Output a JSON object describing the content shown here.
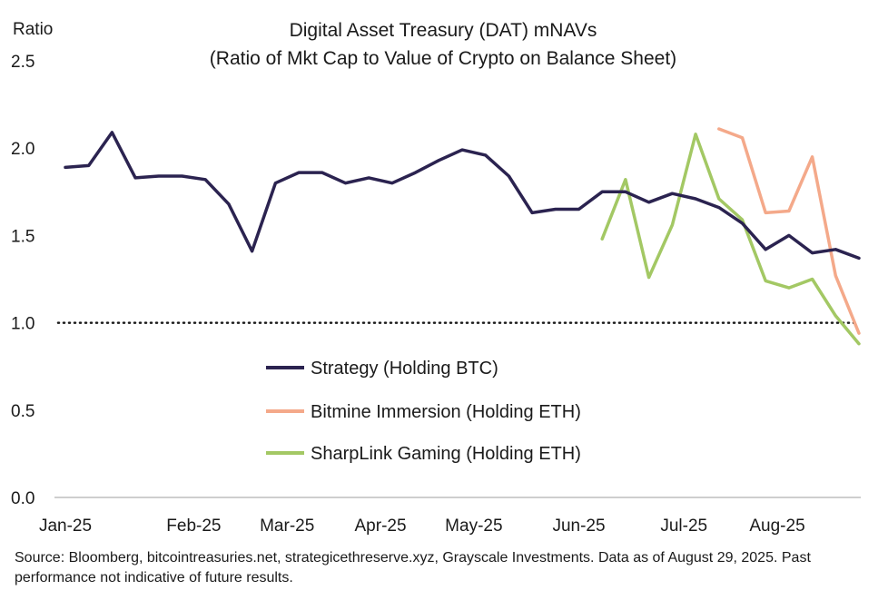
{
  "chart_data": {
    "type": "line",
    "title": "Digital Asset Treasury (DAT) mNAVs",
    "subtitle": "(Ratio of Mkt Cap to Value of Crypto on Balance Sheet)",
    "ylabel": "Ratio",
    "ylim": [
      0,
      2.5
    ],
    "yticks": [
      "0.0",
      "0.5",
      "1.0",
      "1.5",
      "2.0",
      "2.5"
    ],
    "xlim": [
      0,
      34
    ],
    "xticks": [
      {
        "label": "Jan-25",
        "x": 0
      },
      {
        "label": "Feb-25",
        "x": 5.5
      },
      {
        "label": "Mar-25",
        "x": 9.5
      },
      {
        "label": "Apr-25",
        "x": 13.5
      },
      {
        "label": "May-25",
        "x": 17.5
      },
      {
        "label": "Jun-25",
        "x": 22
      },
      {
        "label": "Jul-25",
        "x": 26.5
      },
      {
        "label": "Aug-25",
        "x": 30.5
      }
    ],
    "reference_line": {
      "y": 1.0,
      "style": "dotted"
    },
    "grid": false,
    "legend_position": "center-left",
    "series": [
      {
        "name": "Strategy (Holding BTC)",
        "color": "#2b2350",
        "points": [
          [
            0,
            1.89
          ],
          [
            1,
            1.9
          ],
          [
            2,
            2.09
          ],
          [
            3,
            1.83
          ],
          [
            4,
            1.84
          ],
          [
            5,
            1.84
          ],
          [
            6,
            1.82
          ],
          [
            7,
            1.68
          ],
          [
            8,
            1.41
          ],
          [
            9,
            1.8
          ],
          [
            10,
            1.86
          ],
          [
            11,
            1.86
          ],
          [
            12,
            1.8
          ],
          [
            13,
            1.83
          ],
          [
            14,
            1.8
          ],
          [
            15,
            1.86
          ],
          [
            16,
            1.93
          ],
          [
            17,
            1.99
          ],
          [
            18,
            1.96
          ],
          [
            19,
            1.84
          ],
          [
            20,
            1.63
          ],
          [
            21,
            1.65
          ],
          [
            22,
            1.65
          ],
          [
            23,
            1.75
          ],
          [
            24,
            1.75
          ],
          [
            25,
            1.69
          ],
          [
            26,
            1.74
          ],
          [
            27,
            1.71
          ],
          [
            28,
            1.66
          ],
          [
            29,
            1.57
          ],
          [
            30,
            1.42
          ],
          [
            31,
            1.5
          ],
          [
            32,
            1.4
          ],
          [
            33,
            1.42
          ],
          [
            34,
            1.37
          ]
        ]
      },
      {
        "name": "Bitmine Immersion (Holding ETH)",
        "color": "#f4a98a",
        "points": [
          [
            28,
            2.11
          ],
          [
            29,
            2.06
          ],
          [
            30,
            1.63
          ],
          [
            31,
            1.64
          ],
          [
            32,
            1.95
          ],
          [
            33,
            1.27
          ],
          [
            34,
            0.94
          ]
        ]
      },
      {
        "name": "SharpLink Gaming (Holding ETH)",
        "color": "#a3c864",
        "points": [
          [
            23,
            1.48
          ],
          [
            24,
            1.82
          ],
          [
            25,
            1.26
          ],
          [
            26,
            1.56
          ],
          [
            27,
            2.08
          ],
          [
            28,
            1.71
          ],
          [
            29,
            1.59
          ],
          [
            30,
            1.24
          ],
          [
            31,
            1.2
          ],
          [
            32,
            1.25
          ],
          [
            33,
            1.04
          ],
          [
            34,
            0.88
          ]
        ]
      }
    ],
    "source": "Source: Bloomberg, bitcointreasuries.net, strategicethreserve.xyz, Grayscale Investments. Data as of August 29, 2025. Past performance not indicative of future results."
  }
}
